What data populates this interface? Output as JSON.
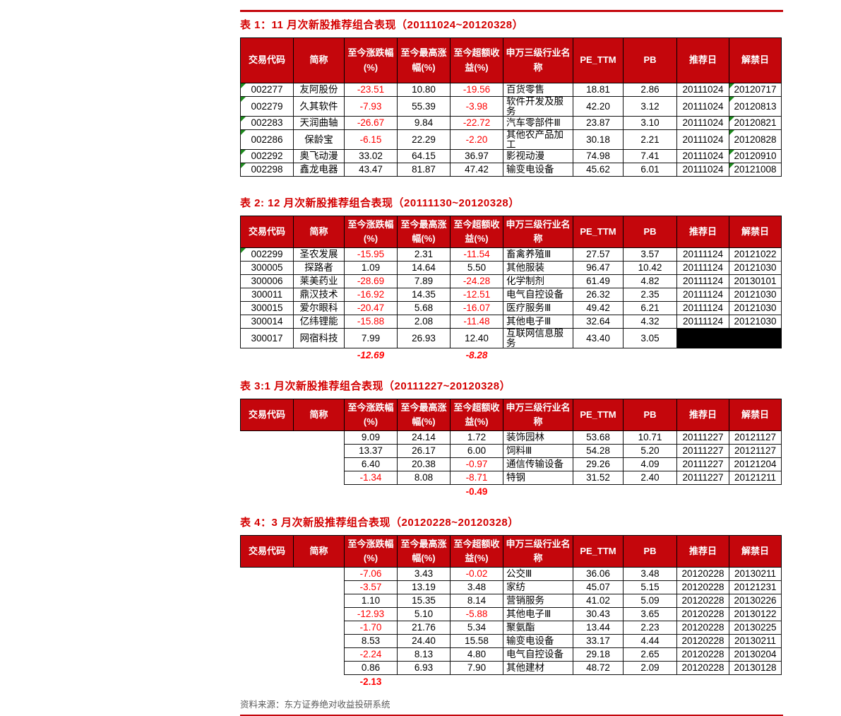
{
  "colors": {
    "header_red": "#c4060c",
    "title_red": "#d40000",
    "negative_red": "#fe0000",
    "summary_red": "#ff0000",
    "green_marker": "#1d8a1d",
    "footer_gray": "#5a5a5a"
  },
  "columns": [
    "交易代码",
    "简称",
    "至今涨跌幅\n(%)",
    "至今最高涨\n幅(%)",
    "至今超额收\n益(%)",
    "申万三级行业名\n称",
    "PE_TTM",
    "PB",
    "推荐日",
    "解禁日"
  ],
  "tables": [
    {
      "title": "表 1：11 月次新股推荐组合表现（20111024~20120328）",
      "rows": [
        {
          "cells": [
            "002277",
            "友阿股份",
            "-23.51",
            "10.80",
            "-19.56",
            "百货零售",
            "18.81",
            "2.86",
            "20111024",
            "20120717"
          ],
          "green": [
            0,
            9
          ]
        },
        {
          "cells": [
            "002279",
            "久其软件",
            "-7.93",
            "55.39",
            "-3.98",
            "软件开发及服务",
            "42.20",
            "3.12",
            "20111024",
            "20120813"
          ],
          "green": [
            0,
            9
          ]
        },
        {
          "cells": [
            "002283",
            "天润曲轴",
            "-26.67",
            "9.84",
            "-22.72",
            "汽车零部件Ⅲ",
            "23.87",
            "3.10",
            "20111024",
            "20120821"
          ],
          "green": [
            0,
            9
          ]
        },
        {
          "cells": [
            "002286",
            "保龄宝",
            "-6.15",
            "22.29",
            "-2.20",
            "其他农产品加工",
            "30.18",
            "2.21",
            "20111024",
            "20120828"
          ],
          "green": [
            0,
            9
          ]
        },
        {
          "cells": [
            "002292",
            "奥飞动漫",
            "33.02",
            "64.15",
            "36.97",
            "影视动漫",
            "74.98",
            "7.41",
            "20111024",
            "20120910"
          ],
          "green": [
            0,
            9
          ]
        },
        {
          "cells": [
            "002298",
            "鑫龙电器",
            "43.47",
            "81.87",
            "47.42",
            "输变电设备",
            "45.62",
            "6.01",
            "20111024",
            "20121008"
          ],
          "green": [
            0,
            9
          ]
        }
      ],
      "summary": null
    },
    {
      "title": "表 2: 12 月次新股推荐组合表现（20111130~20120328）",
      "rows": [
        {
          "cells": [
            "002299",
            "圣农发展",
            "-15.95",
            "2.31",
            "-11.54",
            "畜禽养殖Ⅲ",
            "27.57",
            "3.57",
            "20111124",
            "20121022"
          ],
          "green": [
            0
          ]
        },
        {
          "cells": [
            "300005",
            "探路者",
            "1.09",
            "14.64",
            "5.50",
            "其他服装",
            "96.47",
            "10.42",
            "20111124",
            "20121030"
          ]
        },
        {
          "cells": [
            "300006",
            "莱美药业",
            "-28.69",
            "7.89",
            "-24.28",
            "化学制剂",
            "61.49",
            "4.82",
            "20111124",
            "20130101"
          ]
        },
        {
          "cells": [
            "300011",
            "鼎汉技术",
            "-16.92",
            "14.35",
            "-12.51",
            "电气自控设备",
            "26.32",
            "2.35",
            "20111124",
            "20121030"
          ]
        },
        {
          "cells": [
            "300015",
            "爱尔眼科",
            "-20.47",
            "5.68",
            "-16.07",
            "医疗服务Ⅲ",
            "49.42",
            "6.21",
            "20111124",
            "20121030"
          ]
        },
        {
          "cells": [
            "300014",
            "亿纬锂能",
            "-15.88",
            "2.08",
            "-11.48",
            "其他电子Ⅲ",
            "32.64",
            "4.32",
            "20111124",
            "20121030"
          ]
        },
        {
          "cells": [
            "300017",
            "网宿科技",
            "7.99",
            "26.93",
            "12.40",
            "互联网信息服务",
            "43.40",
            "3.05",
            "",
            ""
          ],
          "black": [
            8,
            9
          ]
        }
      ],
      "summary": {
        "cols": {
          "2": "-12.69",
          "4": "-8.28"
        },
        "italic": true
      }
    },
    {
      "title": "表 3:1 月次新股推荐组合表现（20111227~20120328）",
      "rows": [
        {
          "cells": [
            "",
            "",
            "9.09",
            "24.14",
            "1.72",
            "装饰园林",
            "53.68",
            "10.71",
            "20111227",
            "20121127"
          ],
          "ghost": [
            0,
            1
          ]
        },
        {
          "cells": [
            "",
            "",
            "13.37",
            "26.17",
            "6.00",
            "饲料Ⅲ",
            "54.28",
            "5.20",
            "20111227",
            "20121127"
          ],
          "ghost": [
            0,
            1
          ]
        },
        {
          "cells": [
            "",
            "",
            "6.40",
            "20.38",
            "-0.97",
            "通信传输设备",
            "29.26",
            "4.09",
            "20111227",
            "20121204"
          ],
          "ghost": [
            0,
            1
          ]
        },
        {
          "cells": [
            "",
            "",
            "-1.34",
            "8.08",
            "-8.71",
            "特钢",
            "31.52",
            "2.40",
            "20111227",
            "20121211"
          ],
          "ghost": [
            0,
            1
          ]
        }
      ],
      "summary": {
        "cols": {
          "4": "-0.49"
        },
        "italic": false
      }
    },
    {
      "title": "表 4：3 月次新股推荐组合表现（20120228~20120328）",
      "rows": [
        {
          "cells": [
            "",
            "",
            "-7.06",
            "3.43",
            "-0.02",
            "公交Ⅲ",
            "36.06",
            "3.48",
            "20120228",
            "20130211"
          ],
          "ghost": [
            0,
            1
          ]
        },
        {
          "cells": [
            "",
            "",
            "-3.57",
            "13.19",
            "3.48",
            "家纺",
            "45.07",
            "5.15",
            "20120228",
            "20121231"
          ],
          "ghost": [
            0,
            1
          ]
        },
        {
          "cells": [
            "",
            "",
            "1.10",
            "15.35",
            "8.14",
            "营销服务",
            "41.02",
            "5.09",
            "20120228",
            "20130226"
          ],
          "ghost": [
            0,
            1
          ]
        },
        {
          "cells": [
            "",
            "",
            "-12.93",
            "5.10",
            "-5.88",
            "其他电子Ⅲ",
            "30.43",
            "3.65",
            "20120228",
            "20130122"
          ],
          "ghost": [
            0,
            1
          ]
        },
        {
          "cells": [
            "",
            "",
            "-1.70",
            "21.76",
            "5.34",
            "聚氨酯",
            "13.44",
            "2.23",
            "20120228",
            "20130225"
          ],
          "ghost": [
            0,
            1
          ]
        },
        {
          "cells": [
            "",
            "",
            "8.53",
            "24.40",
            "15.58",
            "输变电设备",
            "33.17",
            "4.44",
            "20120228",
            "20130211"
          ],
          "ghost": [
            0,
            1
          ]
        },
        {
          "cells": [
            "",
            "",
            "-2.24",
            "8.13",
            "4.80",
            "电气自控设备",
            "29.18",
            "2.65",
            "20120228",
            "20130204"
          ],
          "ghost": [
            0,
            1
          ]
        },
        {
          "cells": [
            "",
            "",
            "0.86",
            "6.93",
            "7.90",
            "其他建材",
            "48.72",
            "2.09",
            "20120228",
            "20130128"
          ],
          "ghost": [
            0,
            1
          ]
        }
      ],
      "summary": {
        "cols": {
          "2": "-2.13"
        },
        "italic": false
      }
    }
  ],
  "footer": {
    "source": "资料来源：东方证券绝对收益投研系统"
  }
}
